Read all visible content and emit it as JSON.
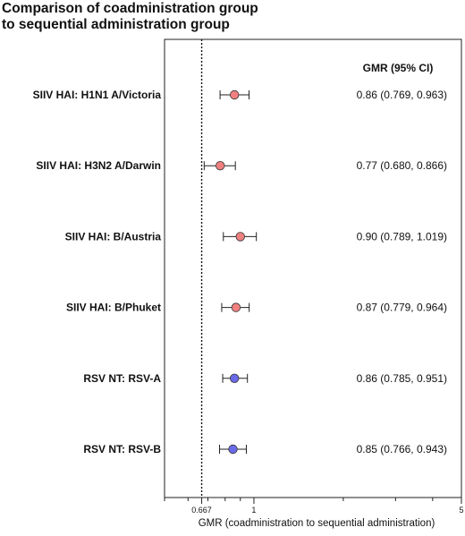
{
  "chart_data": {
    "type": "forest",
    "title": "Comparison of coadministration group to sequential administration group",
    "xlabel": "GMR (coadministration to sequential administration)",
    "xscale": "log",
    "xlim": [
      0.5,
      5
    ],
    "reference_line": 0.667,
    "ticks": [
      {
        "value": 0.667,
        "label": "0.667"
      },
      {
        "value": 1,
        "label": "1"
      },
      {
        "value": 5,
        "label": "5"
      }
    ],
    "minor_ticks": [
      0.5,
      0.6,
      0.7,
      0.8,
      0.9,
      2,
      3,
      4
    ],
    "column_header": "GMR (95% CI)",
    "rows": [
      {
        "label": "SIIV HAI: H1N1 A/Victoria",
        "gmr": 0.86,
        "lower": 0.769,
        "upper": 0.963,
        "ci_text": "0.86 (0.769, 0.963)",
        "color": "#f08080"
      },
      {
        "label": "SIIV HAI: H3N2 A/Darwin",
        "gmr": 0.77,
        "lower": 0.68,
        "upper": 0.866,
        "ci_text": "0.77 (0.680, 0.866)",
        "color": "#f08080"
      },
      {
        "label": "SIIV HAI: B/Austria",
        "gmr": 0.9,
        "lower": 0.789,
        "upper": 1.019,
        "ci_text": "0.90 (0.789, 1.019)",
        "color": "#f08080"
      },
      {
        "label": "SIIV HAI: B/Phuket",
        "gmr": 0.87,
        "lower": 0.779,
        "upper": 0.964,
        "ci_text": "0.87 (0.779, 0.964)",
        "color": "#f08080"
      },
      {
        "label": "RSV NT: RSV-A",
        "gmr": 0.86,
        "lower": 0.785,
        "upper": 0.951,
        "ci_text": "0.86 (0.785, 0.951)",
        "color": "#6a6ae8"
      },
      {
        "label": "RSV NT: RSV-B",
        "gmr": 0.85,
        "lower": 0.766,
        "upper": 0.943,
        "ci_text": "0.85 (0.766, 0.943)",
        "color": "#6a6ae8"
      }
    ]
  }
}
